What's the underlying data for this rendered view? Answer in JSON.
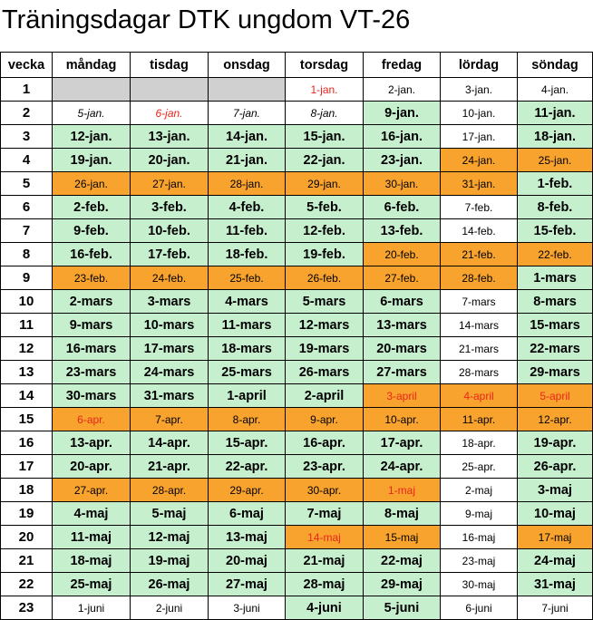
{
  "title": "Träningsdagar DTK ungdom VT-26",
  "headers": [
    "vecka",
    "måndag",
    "tisdag",
    "onsdag",
    "torsdag",
    "fredag",
    "lördag",
    "söndag"
  ],
  "legend_colors": {
    "training": "#c6efce",
    "holiday": "#f9a32f",
    "off": "#ffffff",
    "outside": "#d0d0d0"
  },
  "weeks": [
    {
      "week": "1",
      "days": [
        {
          "text": "",
          "s": "gr"
        },
        {
          "text": "",
          "s": "gr"
        },
        {
          "text": "",
          "s": "gr"
        },
        {
          "text": "1-jan.",
          "s": "w",
          "red": true
        },
        {
          "text": "2-jan.",
          "s": "w"
        },
        {
          "text": "3-jan.",
          "s": "w"
        },
        {
          "text": "4-jan.",
          "s": "w"
        }
      ]
    },
    {
      "week": "2",
      "days": [
        {
          "text": "5-jan.",
          "s": "w",
          "it": true
        },
        {
          "text": "6-jan.",
          "s": "w",
          "it": true,
          "red": true
        },
        {
          "text": "7-jan.",
          "s": "w",
          "it": true
        },
        {
          "text": "8-jan.",
          "s": "w",
          "it": true
        },
        {
          "text": "9-jan.",
          "s": "g"
        },
        {
          "text": "10-jan.",
          "s": "w"
        },
        {
          "text": "11-jan.",
          "s": "g"
        }
      ]
    },
    {
      "week": "3",
      "days": [
        {
          "text": "12-jan.",
          "s": "g"
        },
        {
          "text": "13-jan.",
          "s": "g"
        },
        {
          "text": "14-jan.",
          "s": "g"
        },
        {
          "text": "15-jan.",
          "s": "g"
        },
        {
          "text": "16-jan.",
          "s": "g"
        },
        {
          "text": "17-jan.",
          "s": "w"
        },
        {
          "text": "18-jan.",
          "s": "g"
        }
      ]
    },
    {
      "week": "4",
      "days": [
        {
          "text": "19-jan.",
          "s": "g"
        },
        {
          "text": "20-jan.",
          "s": "g"
        },
        {
          "text": "21-jan.",
          "s": "g"
        },
        {
          "text": "22-jan.",
          "s": "g"
        },
        {
          "text": "23-jan.",
          "s": "g"
        },
        {
          "text": "24-jan.",
          "s": "o"
        },
        {
          "text": "25-jan.",
          "s": "o"
        }
      ]
    },
    {
      "week": "5",
      "days": [
        {
          "text": "26-jan.",
          "s": "o"
        },
        {
          "text": "27-jan.",
          "s": "o"
        },
        {
          "text": "28-jan.",
          "s": "o"
        },
        {
          "text": "29-jan.",
          "s": "o"
        },
        {
          "text": "30-jan.",
          "s": "o"
        },
        {
          "text": "31-jan.",
          "s": "o"
        },
        {
          "text": "1-feb.",
          "s": "g"
        }
      ]
    },
    {
      "week": "6",
      "days": [
        {
          "text": "2-feb.",
          "s": "g"
        },
        {
          "text": "3-feb.",
          "s": "g"
        },
        {
          "text": "4-feb.",
          "s": "g"
        },
        {
          "text": "5-feb.",
          "s": "g"
        },
        {
          "text": "6-feb.",
          "s": "g"
        },
        {
          "text": "7-feb.",
          "s": "w"
        },
        {
          "text": "8-feb.",
          "s": "g"
        }
      ]
    },
    {
      "week": "7",
      "days": [
        {
          "text": "9-feb.",
          "s": "g"
        },
        {
          "text": "10-feb.",
          "s": "g"
        },
        {
          "text": "11-feb.",
          "s": "g"
        },
        {
          "text": "12-feb.",
          "s": "g"
        },
        {
          "text": "13-feb.",
          "s": "g"
        },
        {
          "text": "14-feb.",
          "s": "w"
        },
        {
          "text": "15-feb.",
          "s": "g"
        }
      ]
    },
    {
      "week": "8",
      "days": [
        {
          "text": "16-feb.",
          "s": "g"
        },
        {
          "text": "17-feb.",
          "s": "g"
        },
        {
          "text": "18-feb.",
          "s": "g"
        },
        {
          "text": "19-feb.",
          "s": "g"
        },
        {
          "text": "20-feb.",
          "s": "o"
        },
        {
          "text": "21-feb.",
          "s": "o"
        },
        {
          "text": "22-feb.",
          "s": "o"
        }
      ]
    },
    {
      "week": "9",
      "days": [
        {
          "text": "23-feb.",
          "s": "o"
        },
        {
          "text": "24-feb.",
          "s": "o"
        },
        {
          "text": "25-feb.",
          "s": "o"
        },
        {
          "text": "26-feb.",
          "s": "o"
        },
        {
          "text": "27-feb.",
          "s": "o"
        },
        {
          "text": "28-feb.",
          "s": "o"
        },
        {
          "text": "1-mars",
          "s": "g"
        }
      ]
    },
    {
      "week": "10",
      "days": [
        {
          "text": "2-mars",
          "s": "g"
        },
        {
          "text": "3-mars",
          "s": "g"
        },
        {
          "text": "4-mars",
          "s": "g"
        },
        {
          "text": "5-mars",
          "s": "g"
        },
        {
          "text": "6-mars",
          "s": "g"
        },
        {
          "text": "7-mars",
          "s": "w"
        },
        {
          "text": "8-mars",
          "s": "g"
        }
      ]
    },
    {
      "week": "11",
      "days": [
        {
          "text": "9-mars",
          "s": "g"
        },
        {
          "text": "10-mars",
          "s": "g"
        },
        {
          "text": "11-mars",
          "s": "g"
        },
        {
          "text": "12-mars",
          "s": "g"
        },
        {
          "text": "13-mars",
          "s": "g"
        },
        {
          "text": "14-mars",
          "s": "w"
        },
        {
          "text": "15-mars",
          "s": "g"
        }
      ]
    },
    {
      "week": "12",
      "days": [
        {
          "text": "16-mars",
          "s": "g"
        },
        {
          "text": "17-mars",
          "s": "g"
        },
        {
          "text": "18-mars",
          "s": "g"
        },
        {
          "text": "19-mars",
          "s": "g"
        },
        {
          "text": "20-mars",
          "s": "g"
        },
        {
          "text": "21-mars",
          "s": "w"
        },
        {
          "text": "22-mars",
          "s": "g"
        }
      ]
    },
    {
      "week": "13",
      "days": [
        {
          "text": "23-mars",
          "s": "g"
        },
        {
          "text": "24-mars",
          "s": "g"
        },
        {
          "text": "25-mars",
          "s": "g"
        },
        {
          "text": "26-mars",
          "s": "g"
        },
        {
          "text": "27-mars",
          "s": "g"
        },
        {
          "text": "28-mars",
          "s": "w"
        },
        {
          "text": "29-mars",
          "s": "g"
        }
      ]
    },
    {
      "week": "14",
      "days": [
        {
          "text": "30-mars",
          "s": "g"
        },
        {
          "text": "31-mars",
          "s": "g"
        },
        {
          "text": "1-april",
          "s": "g"
        },
        {
          "text": "2-april",
          "s": "g"
        },
        {
          "text": "3-april",
          "s": "o",
          "red": true
        },
        {
          "text": "4-april",
          "s": "o",
          "red": true
        },
        {
          "text": "5-april",
          "s": "o",
          "red": true
        }
      ]
    },
    {
      "week": "15",
      "days": [
        {
          "text": "6-apr.",
          "s": "o",
          "red": true
        },
        {
          "text": "7-apr.",
          "s": "o"
        },
        {
          "text": "8-apr.",
          "s": "o"
        },
        {
          "text": "9-apr.",
          "s": "o"
        },
        {
          "text": "10-apr.",
          "s": "o"
        },
        {
          "text": "11-apr.",
          "s": "o"
        },
        {
          "text": "12-apr.",
          "s": "o"
        }
      ]
    },
    {
      "week": "16",
      "days": [
        {
          "text": "13-apr.",
          "s": "g"
        },
        {
          "text": "14-apr.",
          "s": "g"
        },
        {
          "text": "15-apr.",
          "s": "g"
        },
        {
          "text": "16-apr.",
          "s": "g"
        },
        {
          "text": "17-apr.",
          "s": "g"
        },
        {
          "text": "18-apr.",
          "s": "w"
        },
        {
          "text": "19-apr.",
          "s": "g"
        }
      ]
    },
    {
      "week": "17",
      "days": [
        {
          "text": "20-apr.",
          "s": "g"
        },
        {
          "text": "21-apr.",
          "s": "g"
        },
        {
          "text": "22-apr.",
          "s": "g"
        },
        {
          "text": "23-apr.",
          "s": "g"
        },
        {
          "text": "24-apr.",
          "s": "g"
        },
        {
          "text": "25-apr.",
          "s": "w"
        },
        {
          "text": "26-apr.",
          "s": "g"
        }
      ]
    },
    {
      "week": "18",
      "days": [
        {
          "text": "27-apr.",
          "s": "o"
        },
        {
          "text": "28-apr.",
          "s": "o"
        },
        {
          "text": "29-apr.",
          "s": "o"
        },
        {
          "text": "30-apr.",
          "s": "o"
        },
        {
          "text": "1-maj",
          "s": "o",
          "red": true
        },
        {
          "text": "2-maj",
          "s": "w"
        },
        {
          "text": "3-maj",
          "s": "g"
        }
      ]
    },
    {
      "week": "19",
      "days": [
        {
          "text": "4-maj",
          "s": "g"
        },
        {
          "text": "5-maj",
          "s": "g"
        },
        {
          "text": "6-maj",
          "s": "g"
        },
        {
          "text": "7-maj",
          "s": "g"
        },
        {
          "text": "8-maj",
          "s": "g"
        },
        {
          "text": "9-maj",
          "s": "w"
        },
        {
          "text": "10-maj",
          "s": "g"
        }
      ]
    },
    {
      "week": "20",
      "days": [
        {
          "text": "11-maj",
          "s": "g"
        },
        {
          "text": "12-maj",
          "s": "g"
        },
        {
          "text": "13-maj",
          "s": "g"
        },
        {
          "text": "14-maj",
          "s": "o",
          "red": true
        },
        {
          "text": "15-maj",
          "s": "o"
        },
        {
          "text": "16-maj",
          "s": "w"
        },
        {
          "text": "17-maj",
          "s": "o"
        }
      ]
    },
    {
      "week": "21",
      "days": [
        {
          "text": "18-maj",
          "s": "g"
        },
        {
          "text": "19-maj",
          "s": "g"
        },
        {
          "text": "20-maj",
          "s": "g"
        },
        {
          "text": "21-maj",
          "s": "g"
        },
        {
          "text": "22-maj",
          "s": "g"
        },
        {
          "text": "23-maj",
          "s": "w"
        },
        {
          "text": "24-maj",
          "s": "g"
        }
      ]
    },
    {
      "week": "22",
      "days": [
        {
          "text": "25-maj",
          "s": "g"
        },
        {
          "text": "26-maj",
          "s": "g"
        },
        {
          "text": "27-maj",
          "s": "g"
        },
        {
          "text": "28-maj",
          "s": "g"
        },
        {
          "text": "29-maj",
          "s": "g"
        },
        {
          "text": "30-maj",
          "s": "w"
        },
        {
          "text": "31-maj",
          "s": "g"
        }
      ]
    },
    {
      "week": "23",
      "days": [
        {
          "text": "1-juni",
          "s": "w"
        },
        {
          "text": "2-juni",
          "s": "w"
        },
        {
          "text": "3-juni",
          "s": "w"
        },
        {
          "text": "4-juni",
          "s": "g"
        },
        {
          "text": "5-juni",
          "s": "g"
        },
        {
          "text": "6-juni",
          "s": "w"
        },
        {
          "text": "7-juni",
          "s": "w"
        }
      ]
    }
  ]
}
